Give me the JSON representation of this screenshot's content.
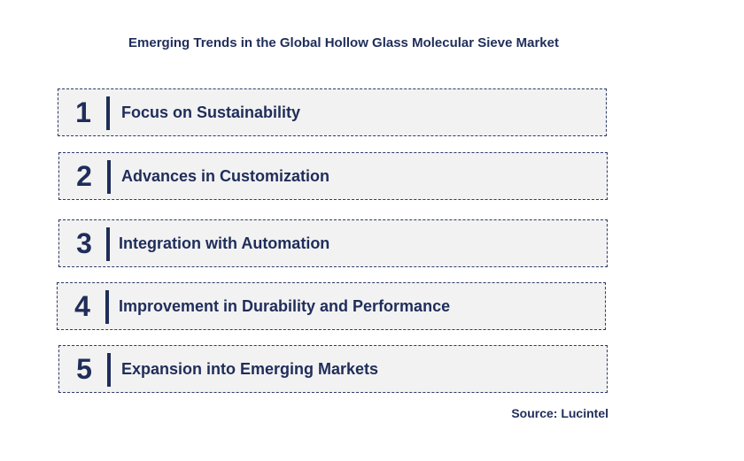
{
  "title": "Emerging Trends in the Global Hollow Glass Molecular Sieve Market",
  "trends": [
    {
      "number": "1",
      "label": "Focus on Sustainability"
    },
    {
      "number": "2",
      "label": "Advances in Customization"
    },
    {
      "number": "3",
      "label": "Integration with Automation"
    },
    {
      "number": "4",
      "label": "Improvement in Durability and Performance"
    },
    {
      "number": "5",
      "label": "Expansion into Emerging Markets"
    }
  ],
  "source": "Source: Lucintel"
}
